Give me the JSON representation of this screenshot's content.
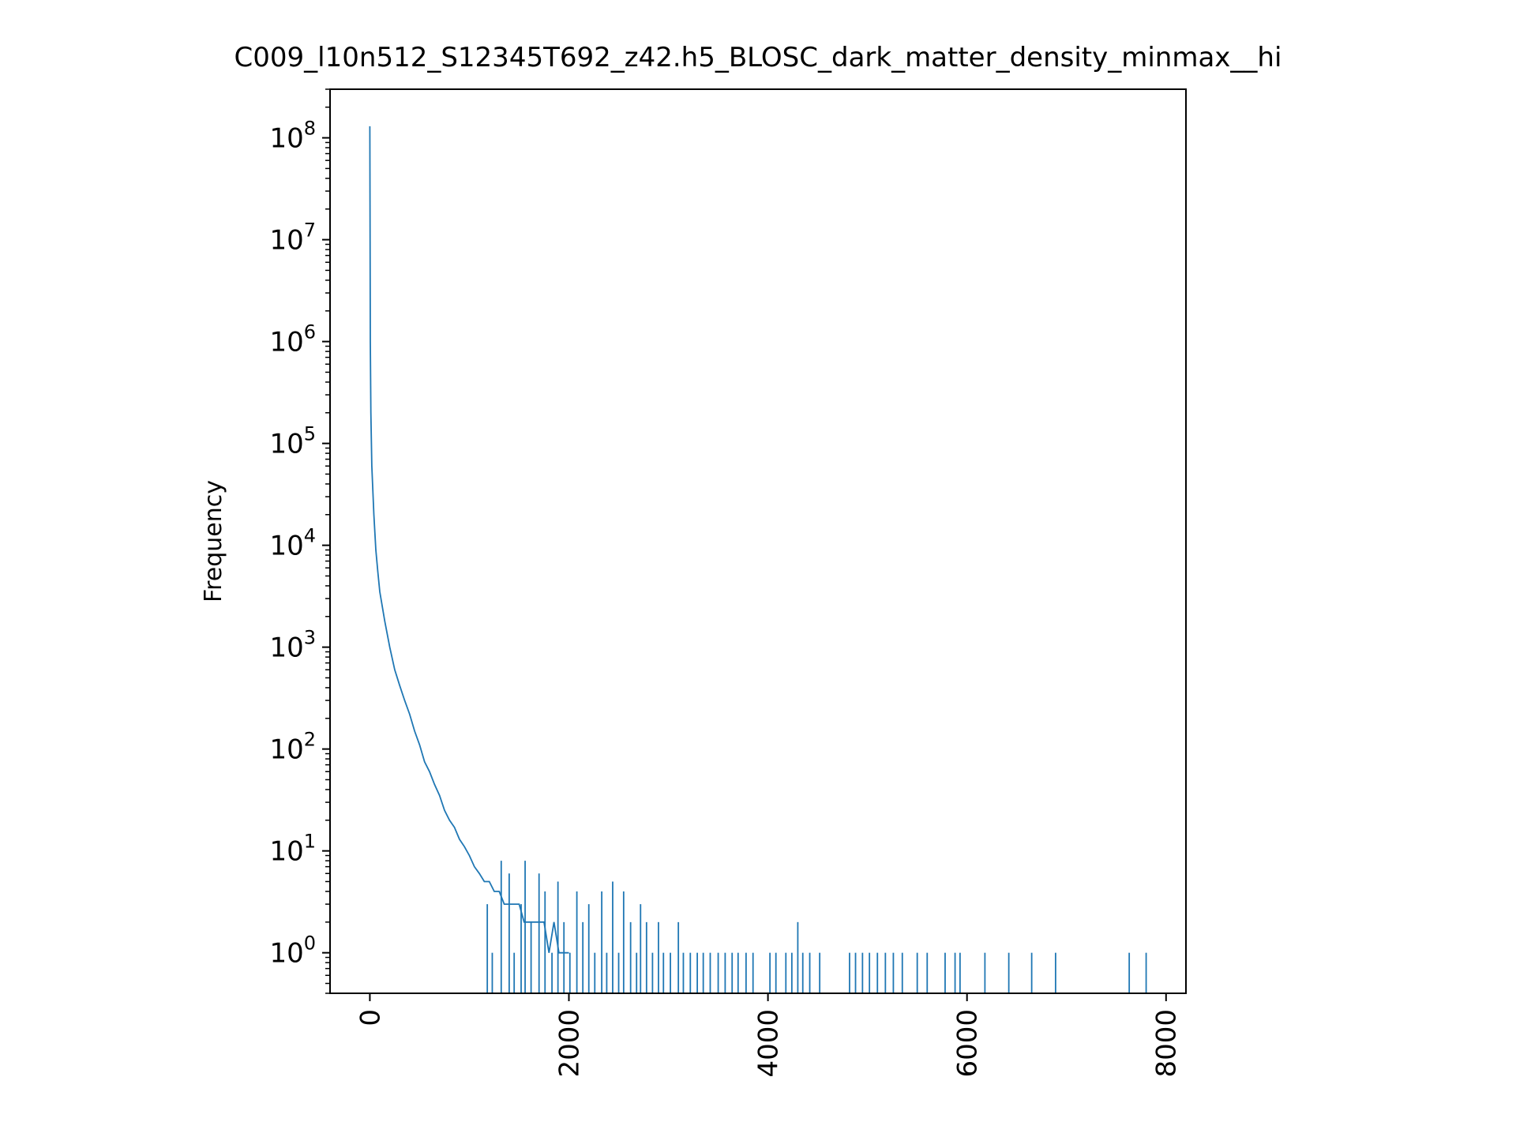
{
  "chart_data": {
    "type": "line",
    "title": "C009_l10n512_S12345T692_z42.h5_BLOSC_dark_matter_density_minmax__hi",
    "xlabel": "",
    "ylabel": "Frequency",
    "xlim": [
      -400,
      8200
    ],
    "ylim": [
      0.4,
      300000000
    ],
    "y_scale": "log",
    "x_ticks": [
      0,
      2000,
      4000,
      6000,
      8000
    ],
    "x_tick_labels": [
      "0",
      "2000",
      "4000",
      "6000",
      "8000"
    ],
    "x_tick_rotation": 90,
    "y_ticks": [
      1,
      10,
      100,
      1000,
      10000,
      100000,
      1000000,
      10000000,
      100000000
    ],
    "y_tick_labels": [
      {
        "base": "10",
        "exp": "0"
      },
      {
        "base": "10",
        "exp": "1"
      },
      {
        "base": "10",
        "exp": "2"
      },
      {
        "base": "10",
        "exp": "3"
      },
      {
        "base": "10",
        "exp": "4"
      },
      {
        "base": "10",
        "exp": "5"
      },
      {
        "base": "10",
        "exp": "6"
      },
      {
        "base": "10",
        "exp": "7"
      },
      {
        "base": "10",
        "exp": "8"
      }
    ],
    "grid": false,
    "series": [
      {
        "color": "#1f77b4",
        "x": [
          0,
          5,
          10,
          20,
          40,
          60,
          80,
          100,
          150,
          200,
          250,
          300,
          350,
          400,
          450,
          500,
          550,
          600,
          650,
          700,
          750,
          800,
          850,
          900,
          950,
          1000,
          1050,
          1100,
          1150,
          1200,
          1250,
          1300,
          1350,
          1400,
          1450,
          1500,
          1550,
          1600,
          1650,
          1700,
          1750,
          1800,
          1850,
          1900,
          1950,
          2000
        ],
        "y": [
          130000000,
          1000000,
          200000,
          60000,
          20000,
          9000,
          5500,
          3500,
          1800,
          1000,
          600,
          420,
          300,
          220,
          150,
          110,
          75,
          60,
          45,
          35,
          25,
          20,
          17,
          13,
          11,
          9,
          7,
          6,
          5,
          5,
          4,
          4,
          3,
          3,
          3,
          3,
          2,
          2,
          2,
          2,
          2,
          1,
          2,
          1,
          1,
          1
        ]
      }
    ],
    "spikes": [
      {
        "x": 1180,
        "y": 3
      },
      {
        "x": 1230,
        "y": 1
      },
      {
        "x": 1320,
        "y": 8
      },
      {
        "x": 1400,
        "y": 6
      },
      {
        "x": 1450,
        "y": 1
      },
      {
        "x": 1520,
        "y": 3
      },
      {
        "x": 1560,
        "y": 8
      },
      {
        "x": 1620,
        "y": 2
      },
      {
        "x": 1700,
        "y": 6
      },
      {
        "x": 1760,
        "y": 4
      },
      {
        "x": 1830,
        "y": 1
      },
      {
        "x": 1890,
        "y": 5
      },
      {
        "x": 1950,
        "y": 2
      },
      {
        "x": 2010,
        "y": 1
      },
      {
        "x": 2080,
        "y": 4
      },
      {
        "x": 2140,
        "y": 2
      },
      {
        "x": 2200,
        "y": 3
      },
      {
        "x": 2260,
        "y": 1
      },
      {
        "x": 2330,
        "y": 4
      },
      {
        "x": 2380,
        "y": 1
      },
      {
        "x": 2440,
        "y": 5
      },
      {
        "x": 2500,
        "y": 1
      },
      {
        "x": 2550,
        "y": 4
      },
      {
        "x": 2620,
        "y": 2
      },
      {
        "x": 2680,
        "y": 1
      },
      {
        "x": 2720,
        "y": 3
      },
      {
        "x": 2780,
        "y": 2
      },
      {
        "x": 2840,
        "y": 1
      },
      {
        "x": 2900,
        "y": 2
      },
      {
        "x": 2950,
        "y": 1
      },
      {
        "x": 3020,
        "y": 1
      },
      {
        "x": 3100,
        "y": 2
      },
      {
        "x": 3150,
        "y": 1
      },
      {
        "x": 3220,
        "y": 1
      },
      {
        "x": 3290,
        "y": 1
      },
      {
        "x": 3350,
        "y": 1
      },
      {
        "x": 3420,
        "y": 1
      },
      {
        "x": 3500,
        "y": 1
      },
      {
        "x": 3570,
        "y": 1
      },
      {
        "x": 3640,
        "y": 1
      },
      {
        "x": 3700,
        "y": 1
      },
      {
        "x": 3780,
        "y": 1
      },
      {
        "x": 3850,
        "y": 1
      },
      {
        "x": 4020,
        "y": 1
      },
      {
        "x": 4080,
        "y": 1
      },
      {
        "x": 4180,
        "y": 1
      },
      {
        "x": 4240,
        "y": 1
      },
      {
        "x": 4300,
        "y": 2
      },
      {
        "x": 4350,
        "y": 1
      },
      {
        "x": 4420,
        "y": 1
      },
      {
        "x": 4520,
        "y": 1
      },
      {
        "x": 4820,
        "y": 1
      },
      {
        "x": 4880,
        "y": 1
      },
      {
        "x": 4950,
        "y": 1
      },
      {
        "x": 5020,
        "y": 1
      },
      {
        "x": 5100,
        "y": 1
      },
      {
        "x": 5180,
        "y": 1
      },
      {
        "x": 5260,
        "y": 1
      },
      {
        "x": 5350,
        "y": 1
      },
      {
        "x": 5500,
        "y": 1
      },
      {
        "x": 5600,
        "y": 1
      },
      {
        "x": 5780,
        "y": 1
      },
      {
        "x": 5880,
        "y": 1
      },
      {
        "x": 5930,
        "y": 1
      },
      {
        "x": 6180,
        "y": 1
      },
      {
        "x": 6420,
        "y": 1
      },
      {
        "x": 6650,
        "y": 1
      },
      {
        "x": 6890,
        "y": 1
      },
      {
        "x": 7630,
        "y": 1
      },
      {
        "x": 7800,
        "y": 1
      }
    ]
  }
}
